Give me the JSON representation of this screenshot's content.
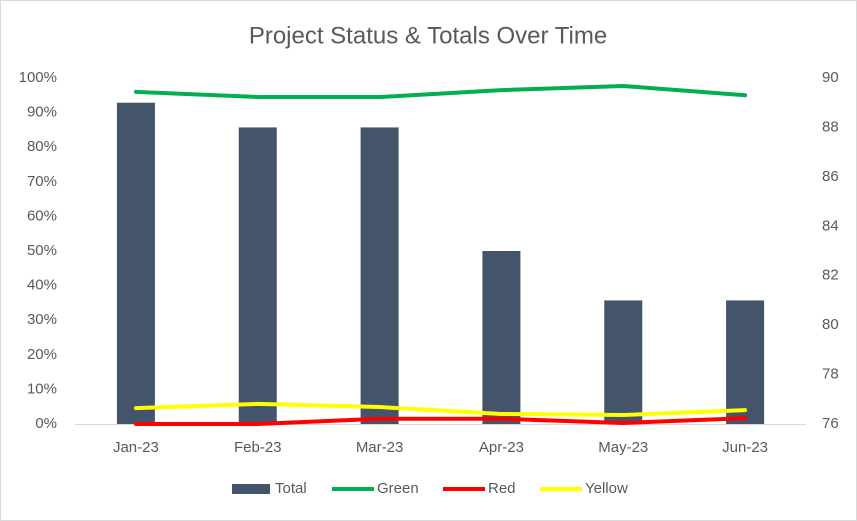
{
  "chart_data": {
    "type": "combo",
    "title": "Project Status & Totals Over Time",
    "categories": [
      "Jan-23",
      "Feb-23",
      "Mar-23",
      "Apr-23",
      "May-23",
      "Jun-23"
    ],
    "series": [
      {
        "name": "Total",
        "type": "bar",
        "axis": "y2",
        "color": "#44546a",
        "values": [
          89,
          88,
          88,
          83,
          81,
          81
        ]
      },
      {
        "name": "Green",
        "type": "line",
        "color": "#00b050",
        "values": [
          96,
          94.5,
          94.5,
          96.5,
          97.7,
          95
        ]
      },
      {
        "name": "Red",
        "type": "line",
        "color": "#ff0000",
        "values": [
          0,
          0,
          1.5,
          1.5,
          0.3,
          1.7
        ]
      },
      {
        "name": "Yellow",
        "type": "line",
        "color": "#ffff00",
        "values": [
          4.6,
          5.8,
          4.9,
          2.9,
          2.6,
          4
        ]
      }
    ],
    "ylim": [
      0,
      100
    ],
    "yticks": [
      {
        "value": 0,
        "label": "0%"
      },
      {
        "value": 10,
        "label": "10%"
      },
      {
        "value": 20,
        "label": "20%"
      },
      {
        "value": 30,
        "label": "30%"
      },
      {
        "value": 40,
        "label": "40%"
      },
      {
        "value": 50,
        "label": "50%"
      },
      {
        "value": 60,
        "label": "60%"
      },
      {
        "value": 70,
        "label": "70%"
      },
      {
        "value": 80,
        "label": "80%"
      },
      {
        "value": 90,
        "label": "90%"
      },
      {
        "value": 100,
        "label": "100%"
      }
    ],
    "y2lim": [
      76,
      90
    ],
    "y2ticks": [
      76,
      78,
      80,
      82,
      84,
      86,
      88,
      90
    ],
    "grid": false,
    "legend": "bottom"
  }
}
